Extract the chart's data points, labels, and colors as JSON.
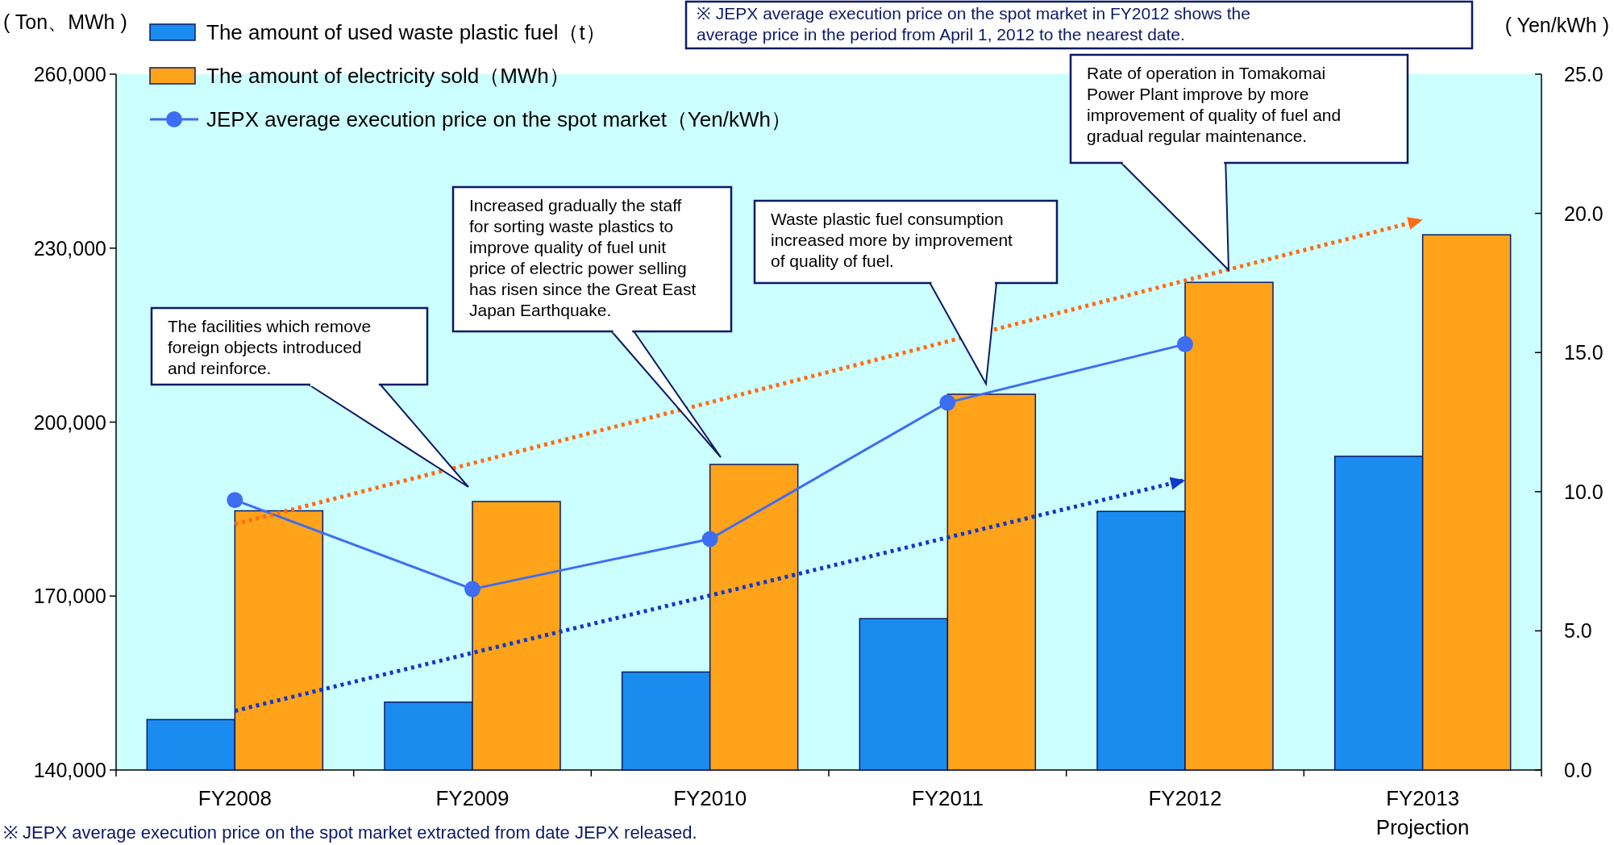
{
  "chart_data": {
    "type": "bar",
    "categories": [
      "FY2008",
      "FY2009",
      "FY2010",
      "FY2011",
      "FY2012",
      "FY2013\nProjection"
    ],
    "ylabel": "( Ton、MWh )",
    "y2label": "( Yen/kWh )",
    "ylim": [
      140000,
      260000
    ],
    "yticks": [
      {
        "value": 140000,
        "label": "140,000"
      },
      {
        "value": 170000,
        "label": "170,000"
      },
      {
        "value": 200000,
        "label": "200,000"
      },
      {
        "value": 230000,
        "label": "230,000"
      },
      {
        "value": 260000,
        "label": "260,000"
      }
    ],
    "y2lim": [
      0,
      25
    ],
    "y2ticks": [
      {
        "value": 0,
        "label": "0.0"
      },
      {
        "value": 5,
        "label": "5.0"
      },
      {
        "value": 10,
        "label": "10.0"
      },
      {
        "value": 15,
        "label": "15.0"
      },
      {
        "value": 20,
        "label": "20.0"
      },
      {
        "value": 25,
        "label": "25.0"
      }
    ],
    "legend": "top left",
    "series": [
      {
        "name": "The amount of used waste plastic fuel（t）",
        "color": "#1a8cf0",
        "values": [
          148700,
          151700,
          156900,
          166100,
          184600,
          194100
        ]
      },
      {
        "name": "The amount of electricity sold（MWh）",
        "color": "#ffa31a",
        "values": [
          184700,
          186300,
          192700,
          204800,
          224100,
          232300
        ]
      },
      {
        "name": "JEPX average execution price on the spot market（Yen/kWh）",
        "type": "line",
        "axis": "y2",
        "marker": "circle",
        "color": "#3d6df2",
        "values": [
          9.7,
          6.5,
          8.3,
          13.2,
          15.3,
          null
        ]
      },
      {
        "type": "line",
        "line_style": "dotted",
        "marker": "none",
        "color": "#ff6a13",
        "values": [
          182400,
          192900,
          203400,
          213900,
          224400,
          234900
        ]
      },
      {
        "type": "line",
        "line_style": "dotted",
        "marker": "none",
        "color": "#1238c8",
        "values": [
          150200,
          160200,
          170100,
          180100,
          190000,
          null
        ]
      }
    ],
    "annotations": [
      "The facilities which remove\nforeign objects introduced\nand reinforce.",
      "Increased gradually the staff\nfor sorting waste plastics to\nimprove quality of fuel unit\nprice of electric power selling\nhas risen since the Great East\nJapan Earthquake.",
      "Waste plastic fuel consumption\nincreased more by improvement\nof quality of fuel.",
      "Rate of operation in Tomakomai\nPower Plant improve by more\nimprovement of quality of fuel and\ngradual regular maintenance.",
      "※ JEPX average execution price on the spot market in FY2012 shows the\naverage price in the period from April 1, 2012 to the nearest date.",
      "※ JEPX average execution price on the spot market extracted from date JEPX released."
    ]
  }
}
